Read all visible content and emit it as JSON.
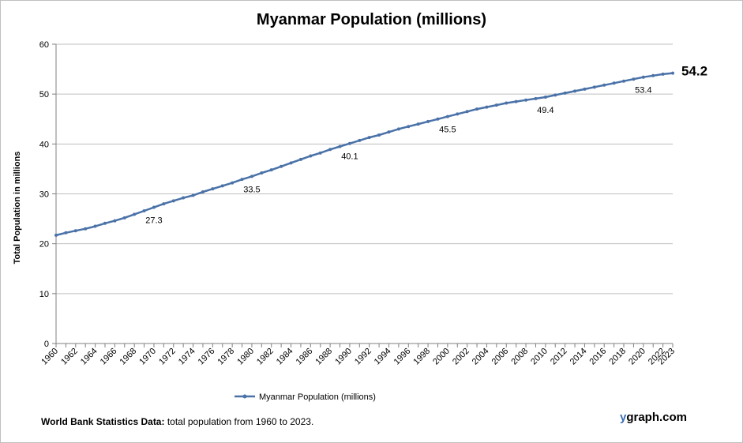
{
  "chart_data": {
    "type": "line",
    "title": "Myanmar Population (millions)",
    "ylabel": "Total Population  in millions",
    "xlabel": "",
    "ylim": [
      0,
      60
    ],
    "yticks": [
      0,
      10,
      20,
      30,
      40,
      50,
      60
    ],
    "xlim": [
      1960,
      2023
    ],
    "xticks": [
      "1960",
      "1962",
      "1964",
      "1966",
      "1968",
      "1970",
      "1972",
      "1974",
      "1976",
      "1978",
      "1980",
      "1982",
      "1984",
      "1986",
      "1988",
      "1990",
      "1992",
      "1994",
      "1996",
      "1998",
      "2000",
      "2002",
      "2004",
      "2006",
      "2008",
      "2010",
      "2012",
      "2014",
      "2016",
      "2018",
      "2020",
      "2022",
      "2023"
    ],
    "grid": "horizontal",
    "legend_position": "bottom",
    "series": [
      {
        "name": "Myanmar Population (millions)",
        "color": "#4a72a8",
        "x": [
          1960,
          1961,
          1962,
          1963,
          1964,
          1965,
          1966,
          1967,
          1968,
          1969,
          1970,
          1971,
          1972,
          1973,
          1974,
          1975,
          1976,
          1977,
          1978,
          1979,
          1980,
          1981,
          1982,
          1983,
          1984,
          1985,
          1986,
          1987,
          1988,
          1989,
          1990,
          1991,
          1992,
          1993,
          1994,
          1995,
          1996,
          1997,
          1998,
          1999,
          2000,
          2001,
          2002,
          2003,
          2004,
          2005,
          2006,
          2007,
          2008,
          2009,
          2010,
          2011,
          2012,
          2013,
          2014,
          2015,
          2016,
          2017,
          2018,
          2019,
          2020,
          2021,
          2022,
          2023
        ],
        "values": [
          21.7,
          22.2,
          22.6,
          23.0,
          23.5,
          24.1,
          24.6,
          25.2,
          25.9,
          26.6,
          27.3,
          28.0,
          28.6,
          29.2,
          29.7,
          30.4,
          31.0,
          31.6,
          32.2,
          32.9,
          33.5,
          34.2,
          34.8,
          35.5,
          36.2,
          36.9,
          37.6,
          38.2,
          38.9,
          39.5,
          40.1,
          40.7,
          41.3,
          41.8,
          42.4,
          43.0,
          43.5,
          44.0,
          44.5,
          45.0,
          45.5,
          46.0,
          46.5,
          47.0,
          47.4,
          47.8,
          48.2,
          48.5,
          48.8,
          49.1,
          49.4,
          49.8,
          50.2,
          50.6,
          51.0,
          51.4,
          51.8,
          52.2,
          52.6,
          53.0,
          53.4,
          53.7,
          54.0,
          54.2
        ]
      }
    ],
    "data_labels": [
      {
        "year": 1970,
        "text": "27.3"
      },
      {
        "year": 1980,
        "text": "33.5"
      },
      {
        "year": 1990,
        "text": "40.1"
      },
      {
        "year": 2000,
        "text": "45.5"
      },
      {
        "year": 2010,
        "text": "49.4"
      },
      {
        "year": 2020,
        "text": "53.4"
      }
    ],
    "end_label": "54.2"
  },
  "footnote": {
    "source_bold": "World Bank Statistics Data:",
    "source_text": " total population from 1960 to 2023."
  },
  "brand": {
    "initial": "y",
    "rest": "graph.com"
  }
}
